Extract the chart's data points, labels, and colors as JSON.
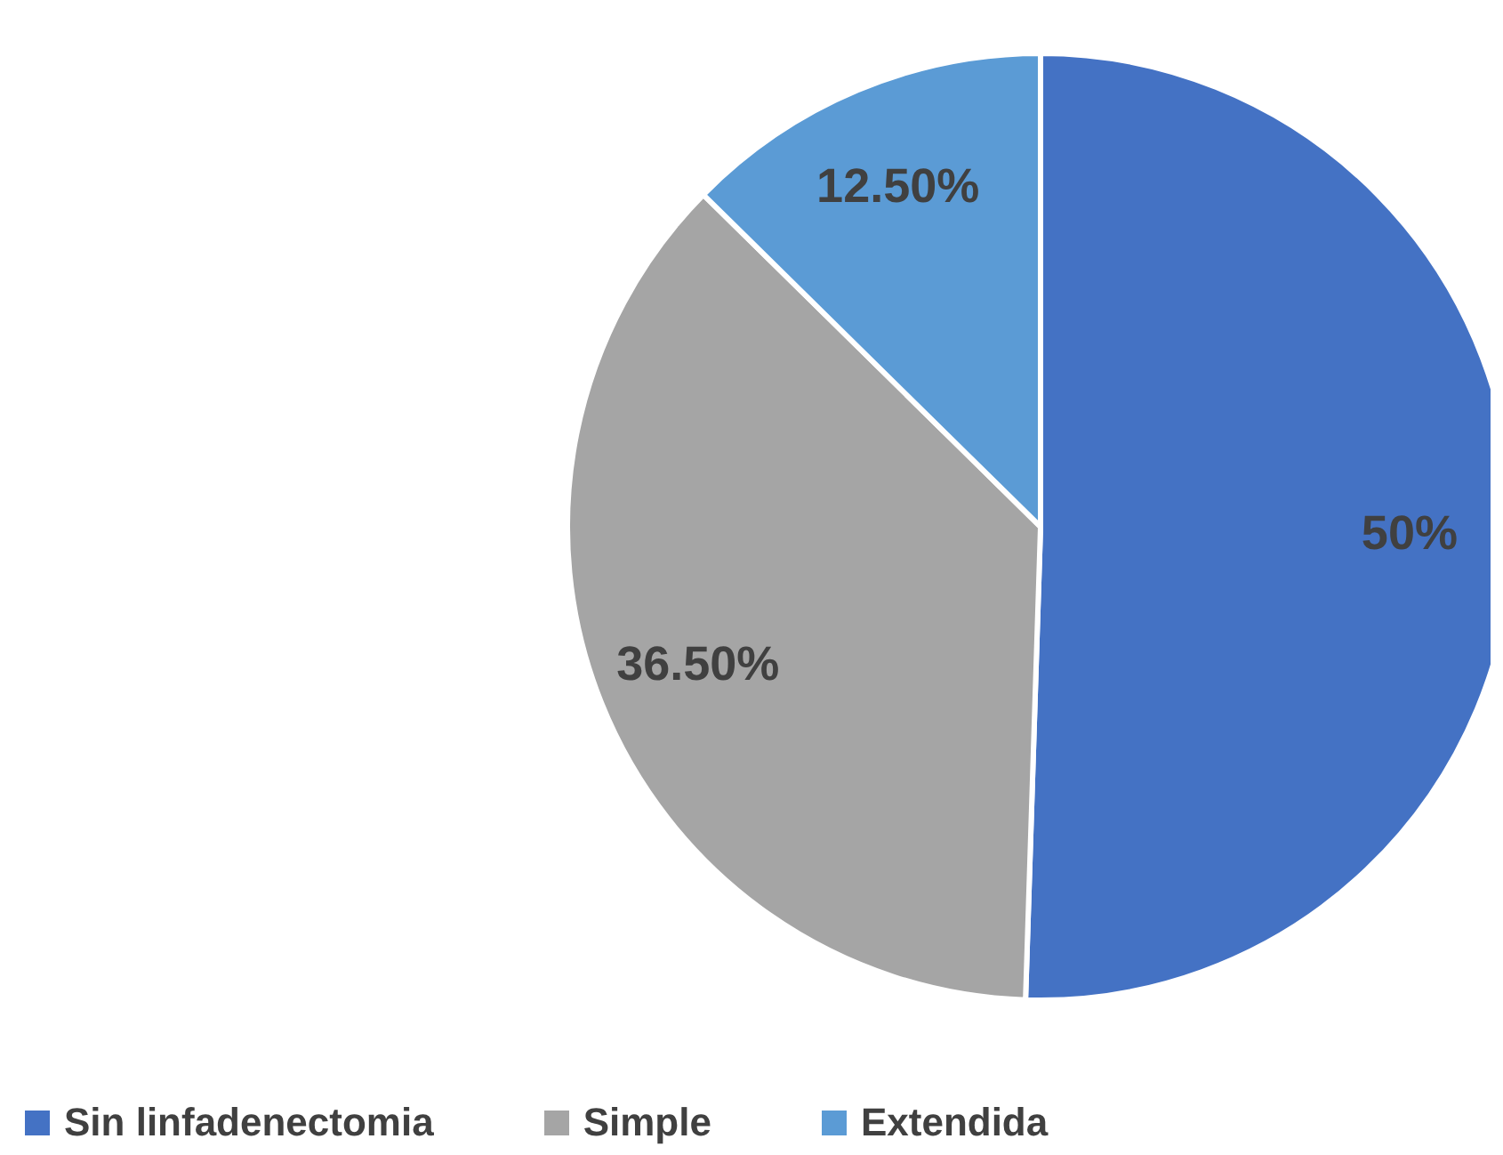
{
  "chart_data": {
    "type": "pie",
    "categories": [
      "Sin linfadenectomia",
      "Simple",
      "Extendida"
    ],
    "values": [
      50,
      36.5,
      12.5
    ],
    "colors": [
      "#4472c4",
      "#a5a5a5",
      "#5b9bd5"
    ],
    "value_labels": [
      "50%",
      "36.50%",
      "12.50%"
    ],
    "legend": "bottom"
  }
}
